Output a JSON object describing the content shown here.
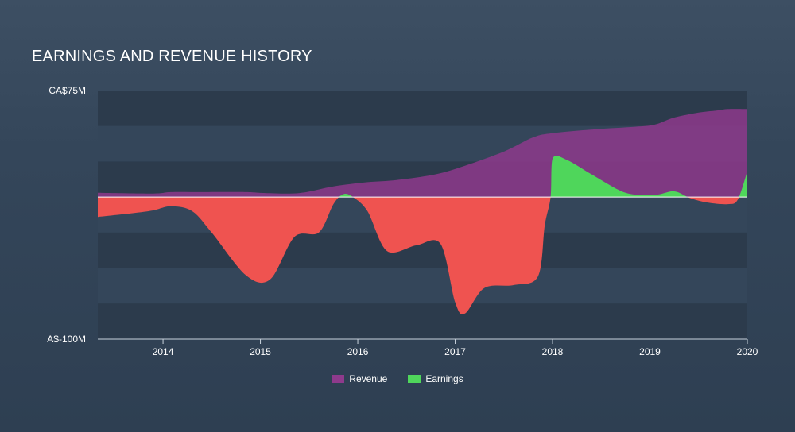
{
  "header": {
    "title": "EARNINGS AND REVENUE HISTORY"
  },
  "chart_data": {
    "type": "area",
    "title": "EARNINGS AND REVENUE HISTORY",
    "ylim": [
      -100,
      75
    ],
    "y_tick_labels": [
      "CA$75M",
      "A$-100M"
    ],
    "x_tick_labels": [
      "2014",
      "2015",
      "2016",
      "2017",
      "2018",
      "2019",
      "2020"
    ],
    "x_tick_values": [
      2014,
      2015,
      2016,
      2017,
      2018,
      2019,
      2020
    ],
    "xlim": [
      2013.33,
      2020.0
    ],
    "legend": {
      "position": "bottom-center"
    },
    "colors": {
      "revenue": "#8e3a8c",
      "earnings_pos": "#4fd65b",
      "earnings_neg": "#ef5350",
      "zero_line": "#ffffff"
    },
    "series": [
      {
        "name": "Revenue",
        "x": [
          2013.33,
          2013.9,
          2014.08,
          2014.4,
          2014.85,
          2015.05,
          2015.4,
          2015.75,
          2016.1,
          2016.4,
          2016.8,
          2017.1,
          2017.5,
          2017.8,
          2018.0,
          2018.5,
          2018.85,
          2019.05,
          2019.25,
          2019.5,
          2019.7,
          2019.8,
          2020.0
        ],
        "values": [
          3.0,
          2.5,
          3.5,
          3.5,
          3.5,
          2.8,
          2.8,
          7.5,
          10.5,
          12.0,
          16.0,
          22.0,
          32.0,
          42.0,
          45.0,
          48.0,
          49.5,
          51.0,
          56.0,
          59.5,
          61.0,
          62.0,
          62.0
        ]
      },
      {
        "name": "Earnings",
        "x": [
          2013.33,
          2013.85,
          2014.08,
          2014.3,
          2014.5,
          2014.85,
          2015.1,
          2015.35,
          2015.6,
          2015.75,
          2015.85,
          2015.95,
          2016.1,
          2016.3,
          2016.6,
          2016.85,
          2017.0,
          2017.1,
          2017.3,
          2017.6,
          2017.85,
          2017.92,
          2017.98,
          2018.0,
          2018.15,
          2018.4,
          2018.75,
          2019.05,
          2019.25,
          2019.42,
          2019.6,
          2019.8,
          2019.9,
          2020.0
        ],
        "values": [
          -14.0,
          -10.0,
          -6.5,
          -10.0,
          -25.0,
          -55.0,
          -58.0,
          -28.0,
          -25.0,
          -5.0,
          2.0,
          0.0,
          -10.0,
          -38.0,
          -34.0,
          -33.0,
          -74.0,
          -82.0,
          -64.0,
          -62.0,
          -56.0,
          -20.0,
          0.0,
          27.0,
          26.0,
          16.0,
          3.0,
          1.5,
          4.0,
          -1.0,
          -4.0,
          -5.0,
          -2.0,
          18.0
        ]
      }
    ]
  }
}
